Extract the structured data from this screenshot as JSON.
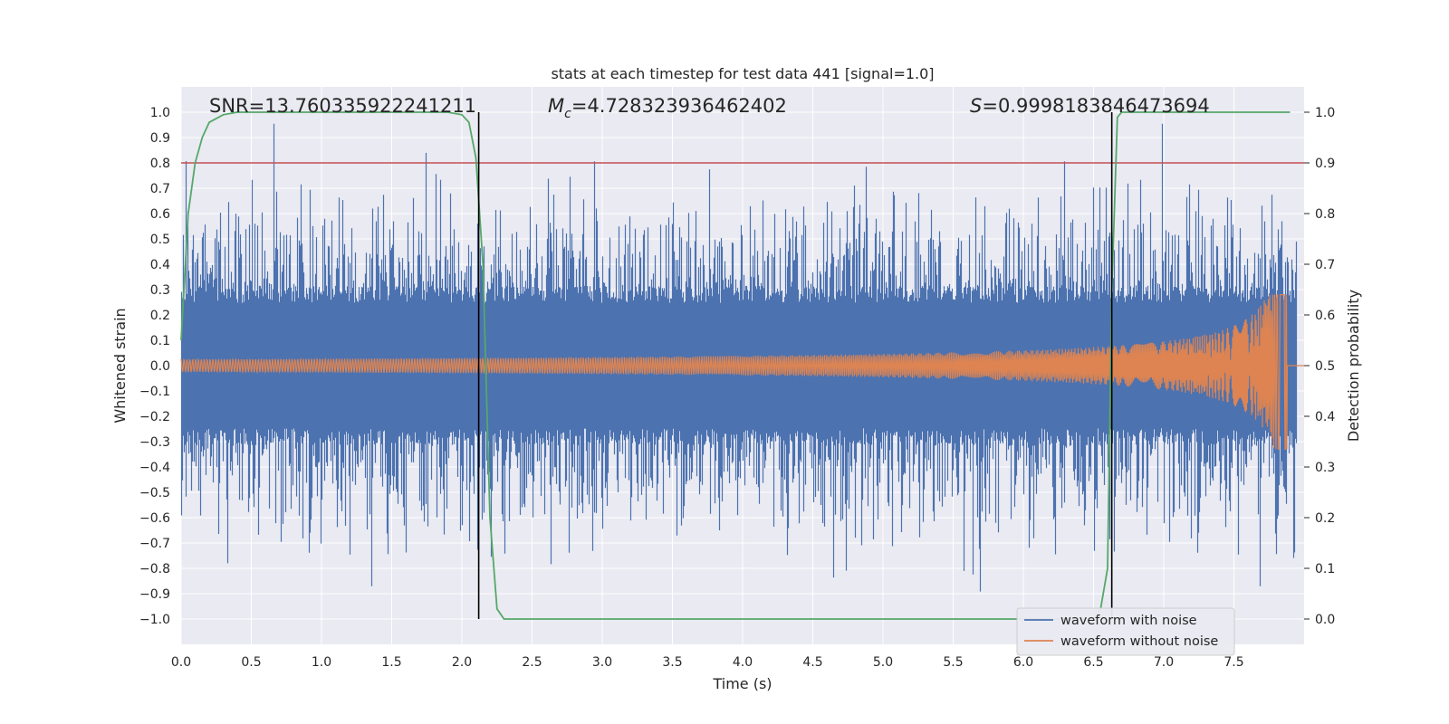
{
  "chart_data": {
    "type": "line",
    "title": "stats at each timestep for test data 441 [signal=1.0]",
    "xlabel": "Time (s)",
    "ylabel": "Whitened strain",
    "y2label": "Detection probability",
    "xlim": [
      0.0,
      8.0
    ],
    "ylim": [
      -1.1,
      1.1
    ],
    "y2lim": [
      -0.05,
      1.05
    ],
    "x_ticks": [
      "0.0",
      "0.5",
      "1.0",
      "1.5",
      "2.0",
      "2.5",
      "3.0",
      "3.5",
      "4.0",
      "4.5",
      "5.0",
      "5.5",
      "6.0",
      "6.5",
      "7.0",
      "7.5"
    ],
    "y_ticks": [
      "1.0",
      "0.9",
      "0.8",
      "0.7",
      "0.6",
      "0.5",
      "0.4",
      "0.3",
      "0.2",
      "0.1",
      "0.0",
      "−0.1",
      "−0.2",
      "−0.3",
      "−0.4",
      "−0.5",
      "−0.6",
      "−0.7",
      "−0.8",
      "−0.9",
      "−1.0"
    ],
    "y2_ticks": [
      "1.0",
      "0.9",
      "0.8",
      "0.7",
      "0.6",
      "0.5",
      "0.4",
      "0.3",
      "0.2",
      "0.1",
      "0.0"
    ],
    "annotations": {
      "snr": "SNR=13.760335922241211",
      "mc_prefix": "M",
      "mc_sub": "c",
      "mc_value": "=4.728323936462402",
      "s_prefix": "S",
      "s_value": "=0.9998183846473694"
    },
    "threshold": {
      "y2": 0.9,
      "color": "#c44e52"
    },
    "vertical_lines": [
      2.12,
      6.63
    ],
    "series": [
      {
        "name": "waveform with noise",
        "color": "#4c72b0",
        "kind": "noise",
        "t_start": 0.0,
        "t_end": 7.95,
        "typical_amplitude": 0.45,
        "peak_max": 0.99,
        "peak_min": -1.0
      },
      {
        "name": "waveform without noise",
        "color": "#dd8452",
        "kind": "chirp",
        "t_start": 0.0,
        "t_end": 7.88,
        "amplitude_start": 0.025,
        "amplitude_peak": 0.28,
        "amplitude_min": -0.33
      },
      {
        "name": "detection probability",
        "color": "#55a868",
        "axis": "y2",
        "x": [
          0.0,
          0.05,
          0.1,
          0.15,
          0.2,
          0.3,
          0.4,
          1.0,
          1.9,
          2.0,
          2.05,
          2.1,
          2.15,
          2.2,
          2.25,
          2.3,
          2.5,
          6.5,
          6.55,
          6.6,
          6.63,
          6.67,
          6.7,
          6.8,
          7.9
        ],
        "y": [
          0.55,
          0.8,
          0.9,
          0.95,
          0.98,
          0.995,
          1.0,
          1.0,
          1.0,
          0.995,
          0.98,
          0.91,
          0.7,
          0.2,
          0.02,
          0.0,
          0.0,
          0.0,
          0.02,
          0.1,
          0.65,
          0.99,
          1.0,
          1.0,
          1.0
        ]
      }
    ],
    "legend": {
      "position": "lower-right",
      "entries": [
        {
          "label": "waveform with noise",
          "color": "#4c72b0"
        },
        {
          "label": "waveform without noise",
          "color": "#dd8452"
        }
      ]
    },
    "background": "#eaeaf2",
    "grid_color": "#ffffff",
    "grid": true
  }
}
